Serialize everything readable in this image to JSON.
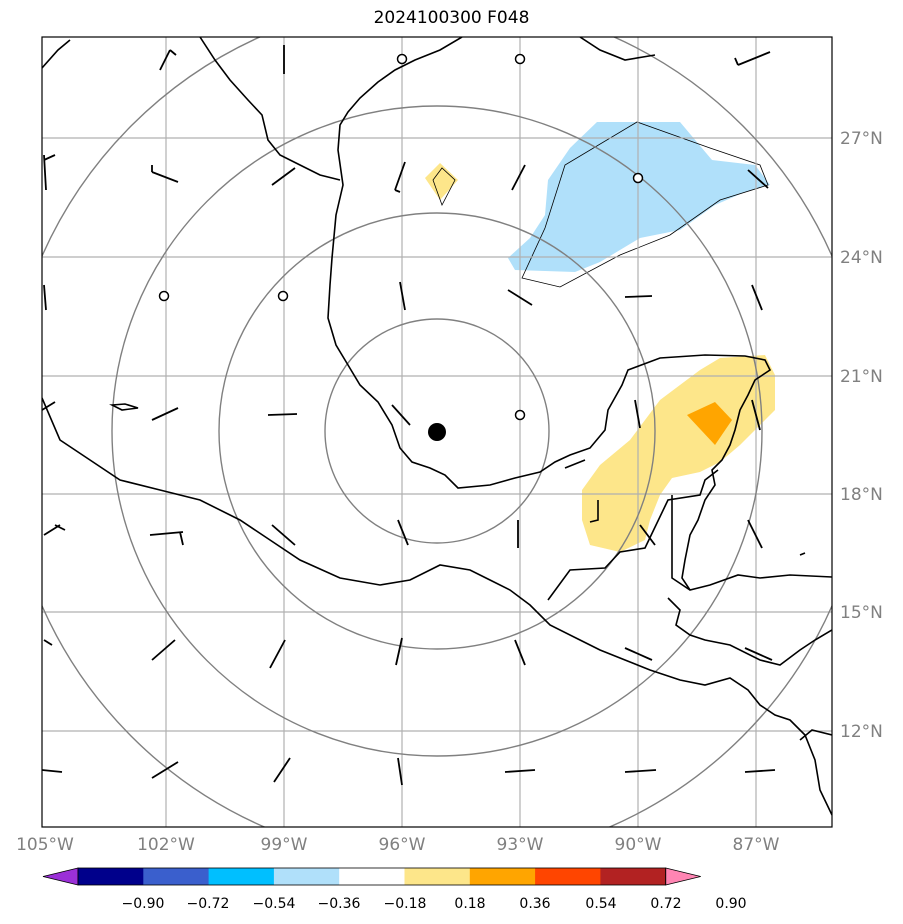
{
  "title": "2024100300 F048",
  "map": {
    "lat_labels": [
      "27°N",
      "24°N",
      "21°N",
      "18°N",
      "15°N",
      "12°N"
    ],
    "lon_labels": [
      "105°W",
      "102°W",
      "99°W",
      "96°W",
      "93°W",
      "90°W",
      "87°W"
    ],
    "center_marker": "storm-center",
    "range_rings": 4
  },
  "colorbar": {
    "ticks": [
      "−0.90",
      "−0.72",
      "−0.54",
      "−0.36",
      "−0.18",
      "0.18",
      "0.36",
      "0.54",
      "0.72",
      "0.90"
    ],
    "colors": [
      "#9b30d8",
      "#00008b",
      "#3a5fcd",
      "#00bfff",
      "#b0e0fa",
      "#ffffff",
      "#fde68a",
      "#ffa500",
      "#ff4500",
      "#b22222",
      "#ff85b3"
    ]
  }
}
